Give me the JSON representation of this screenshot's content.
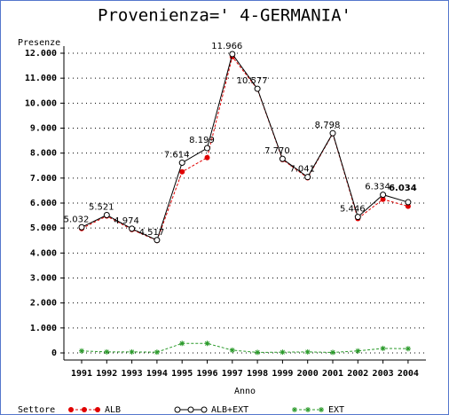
{
  "chart_data": {
    "type": "line",
    "title": "Provenienza=' 4-GERMANIA'",
    "y_label": "Presenze",
    "x_label": "Anno",
    "legend_title": "Settore",
    "categories": [
      "1991",
      "1992",
      "1993",
      "1994",
      "1995",
      "1996",
      "1997",
      "1998",
      "1999",
      "2000",
      "2001",
      "2002",
      "2003",
      "2004"
    ],
    "series": [
      {
        "name": "ALB",
        "color": "#e00000",
        "values": [
          4980,
          5480,
          4940,
          4500,
          7250,
          7820,
          11860,
          10560,
          7740,
          7010,
          8780,
          5380,
          6150,
          5870
        ]
      },
      {
        "name": "ALB+EXT",
        "color": "#000000",
        "values": [
          5032,
          5521,
          4974,
          4517,
          7614,
          8199,
          11966,
          10577,
          7770,
          7041,
          8798,
          5446,
          6334,
          6034
        ],
        "value_labels": [
          "5.032",
          "5.521",
          "4.974",
          "4.517",
          "7.614",
          "8.199",
          "11.966",
          "10.577",
          "7.770",
          "7.041",
          "8.798",
          "5.446",
          "6.334",
          "6.034"
        ]
      },
      {
        "name": "EXT",
        "color": "#2a9a2a",
        "values": [
          80,
          40,
          40,
          30,
          380,
          380,
          110,
          20,
          30,
          40,
          20,
          80,
          180,
          170
        ]
      }
    ],
    "ylim": [
      0,
      12000
    ],
    "yticks": [
      0,
      {
        "value": 1000,
        "label": "1.000"
      },
      {
        "value": 2000,
        "label": "2.000"
      },
      {
        "value": 3000,
        "label": "3.000"
      },
      {
        "value": 4000,
        "label": "4.000"
      },
      {
        "value": 5000,
        "label": "5.000"
      },
      {
        "value": 6000,
        "label": "6.000"
      },
      {
        "value": 7000,
        "label": "7.000"
      },
      {
        "value": 8000,
        "label": "8.000"
      },
      {
        "value": 9000,
        "label": "9.000"
      },
      {
        "value": 10000,
        "label": "10.000"
      },
      {
        "value": 11000,
        "label": "11.000"
      },
      {
        "value": 12000,
        "label": "12.000"
      }
    ],
    "grid": true
  }
}
